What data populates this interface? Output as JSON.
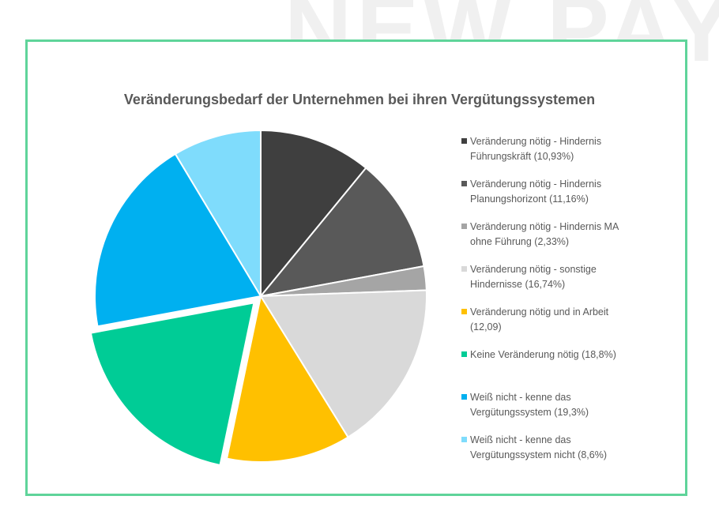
{
  "watermark": "NEW PAY",
  "chart_data": {
    "type": "pie",
    "title": "Veränderungsbedarf der Unternehmen bei ihren Vergütungssystemen",
    "legend_position": "right",
    "slices": [
      {
        "label": "Veränderung nötig - Hindernis Führungskräft (10,93%)",
        "value": 10.93,
        "color": "#3f3f3f"
      },
      {
        "label": "Veränderung nötig - Hindernis Planungshorizont (11,16%)",
        "value": 11.16,
        "color": "#595959"
      },
      {
        "label": "Veränderung nötig - Hindernis MA ohne Führung (2,33%)",
        "value": 2.33,
        "color": "#a5a5a5"
      },
      {
        "label": "Veränderung nötig - sonstige Hindernisse (16,74%)",
        "value": 16.74,
        "color": "#d9d9d9"
      },
      {
        "label": "Veränderung nötig und in Arbeit (12,09)",
        "value": 12.09,
        "color": "#ffc000"
      },
      {
        "label": "Keine Veränderung nötig (18,8%)",
        "value": 18.8,
        "color": "#00cc96",
        "exploded": true
      },
      {
        "label": "Weiß nicht - kenne das Vergütungssystem (19,3%)",
        "value": 19.3,
        "color": "#00b0f0"
      },
      {
        "label": "Weiß nicht - kenne das Vergütungssystem nicht (8,6%)",
        "value": 8.6,
        "color": "#7fdcfc"
      }
    ]
  }
}
